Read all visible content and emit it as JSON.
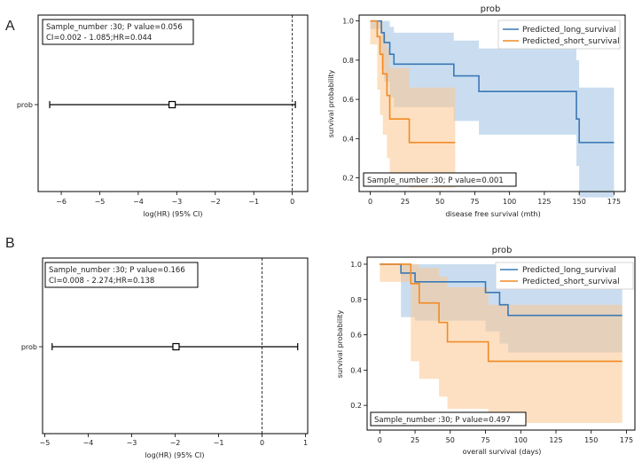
{
  "panel_labels": [
    "A",
    "B"
  ],
  "colors": {
    "long": "#3a78b5",
    "short": "#f28a24",
    "long_fill": "#9ec1e3",
    "short_fill": "#fcc690"
  },
  "chart_data": [
    {
      "type": "forest",
      "panel": "A",
      "ytick": "prob",
      "xlabel": "log(HR) (95% CI)",
      "xlim": [
        -6.6,
        0.4
      ],
      "xticks": [
        -6,
        -5,
        -4,
        -3,
        -2,
        -1,
        0
      ],
      "xtick_labels": [
        "−6",
        "−5",
        "−4",
        "−3",
        "−2",
        "−1",
        "0"
      ],
      "point": -3.12,
      "ci": [
        -6.3,
        0.08
      ],
      "reference_line": 0,
      "annotation_line1": "Sample_number :30; P value=0.056",
      "annotation_line2": "CI=0.002 - 1.085;HR=0.044"
    },
    {
      "type": "line",
      "subtype": "kaplan-meier step",
      "panel": "A",
      "title": "prob",
      "xlabel": "disease free survival (mth)",
      "ylabel": "survival probability",
      "xlim": [
        -8,
        183
      ],
      "ylim": [
        0.13,
        1.03
      ],
      "xticks": [
        0,
        25,
        50,
        75,
        100,
        125,
        150,
        175
      ],
      "yticks": [
        0.2,
        0.4,
        0.6,
        0.8,
        1.0
      ],
      "ytick_labels": [
        "0.2",
        "0.4",
        "0.6",
        "0.8",
        "1.0"
      ],
      "legend": [
        "Predicted_long_survival",
        "Predicted_short_survival"
      ],
      "series": [
        {
          "name": "Predicted_long_survival",
          "x": [
            0,
            8,
            10,
            14,
            17,
            20,
            60,
            78,
            148,
            150,
            175
          ],
          "y": [
            1.0,
            0.94,
            0.89,
            0.83,
            0.78,
            0.78,
            0.72,
            0.64,
            0.5,
            0.38,
            0.38
          ],
          "lower": [
            0.96,
            0.75,
            0.69,
            0.61,
            0.56,
            0.56,
            0.49,
            0.42,
            0.26,
            0.1,
            0.1
          ],
          "upper": [
            1.0,
            1.0,
            1.0,
            0.97,
            0.94,
            0.94,
            0.9,
            0.86,
            0.8,
            0.66,
            0.66
          ]
        },
        {
          "name": "Predicted_short_survival",
          "x": [
            0,
            5,
            7,
            9,
            12,
            14,
            28,
            61
          ],
          "y": [
            1.0,
            0.92,
            0.83,
            0.73,
            0.62,
            0.5,
            0.38,
            0.38
          ],
          "lower": [
            0.88,
            0.65,
            0.52,
            0.42,
            0.3,
            0.18,
            0.15,
            0.15
          ],
          "upper": [
            1.0,
            1.0,
            1.0,
            0.93,
            0.86,
            0.76,
            0.66,
            0.66
          ]
        }
      ],
      "annotation": "Sample_number :30; P value=0.001"
    },
    {
      "type": "forest",
      "panel": "B",
      "ytick": "prob",
      "xlabel": "log(HR) (95% CI)",
      "xlim": [
        -5.05,
        1.05
      ],
      "xticks": [
        -5,
        -4,
        -3,
        -2,
        -1,
        0,
        1
      ],
      "xtick_labels": [
        "−5",
        "−4",
        "−3",
        "−2",
        "−1",
        "0",
        "1"
      ],
      "point": -1.98,
      "ci": [
        -4.83,
        0.82
      ],
      "reference_line": 0,
      "annotation_line1": "Sample_number :30; P value=0.166",
      "annotation_line2": "CI=0.008 - 2.274;HR=0.138"
    },
    {
      "type": "line",
      "subtype": "kaplan-meier step",
      "panel": "B",
      "title": "prob",
      "xlabel": "overall survival (days)",
      "ylabel": "survival probability",
      "xlim": [
        -9,
        181
      ],
      "ylim": [
        0.06,
        1.04
      ],
      "xticks": [
        0,
        25,
        50,
        75,
        100,
        125,
        150,
        175
      ],
      "yticks": [
        0.2,
        0.4,
        0.6,
        0.8,
        1.0
      ],
      "ytick_labels": [
        "0.2",
        "0.4",
        "0.6",
        "0.8",
        "1.0"
      ],
      "legend": [
        "Predicted_long_survival",
        "Predicted_short_survival"
      ],
      "series": [
        {
          "name": "Predicted_long_survival",
          "x": [
            0,
            15,
            25,
            75,
            85,
            91,
            172
          ],
          "y": [
            1.0,
            0.95,
            0.9,
            0.84,
            0.77,
            0.71,
            0.71
          ],
          "lower": [
            1.0,
            0.7,
            0.68,
            0.62,
            0.55,
            0.5,
            0.5
          ],
          "upper": [
            1.0,
            1.0,
            1.0,
            1.0,
            0.95,
            0.91,
            0.91
          ]
        },
        {
          "name": "Predicted_short_survival",
          "x": [
            0,
            22,
            28,
            42,
            48,
            77,
            172
          ],
          "y": [
            1.0,
            0.89,
            0.78,
            0.67,
            0.56,
            0.45,
            0.45
          ],
          "lower": [
            0.9,
            0.45,
            0.35,
            0.25,
            0.18,
            0.1,
            0.1
          ],
          "upper": [
            1.0,
            1.0,
            0.98,
            0.93,
            0.87,
            0.77,
            0.77
          ]
        }
      ],
      "annotation": "Sample_number :30; P value=0.497"
    }
  ]
}
